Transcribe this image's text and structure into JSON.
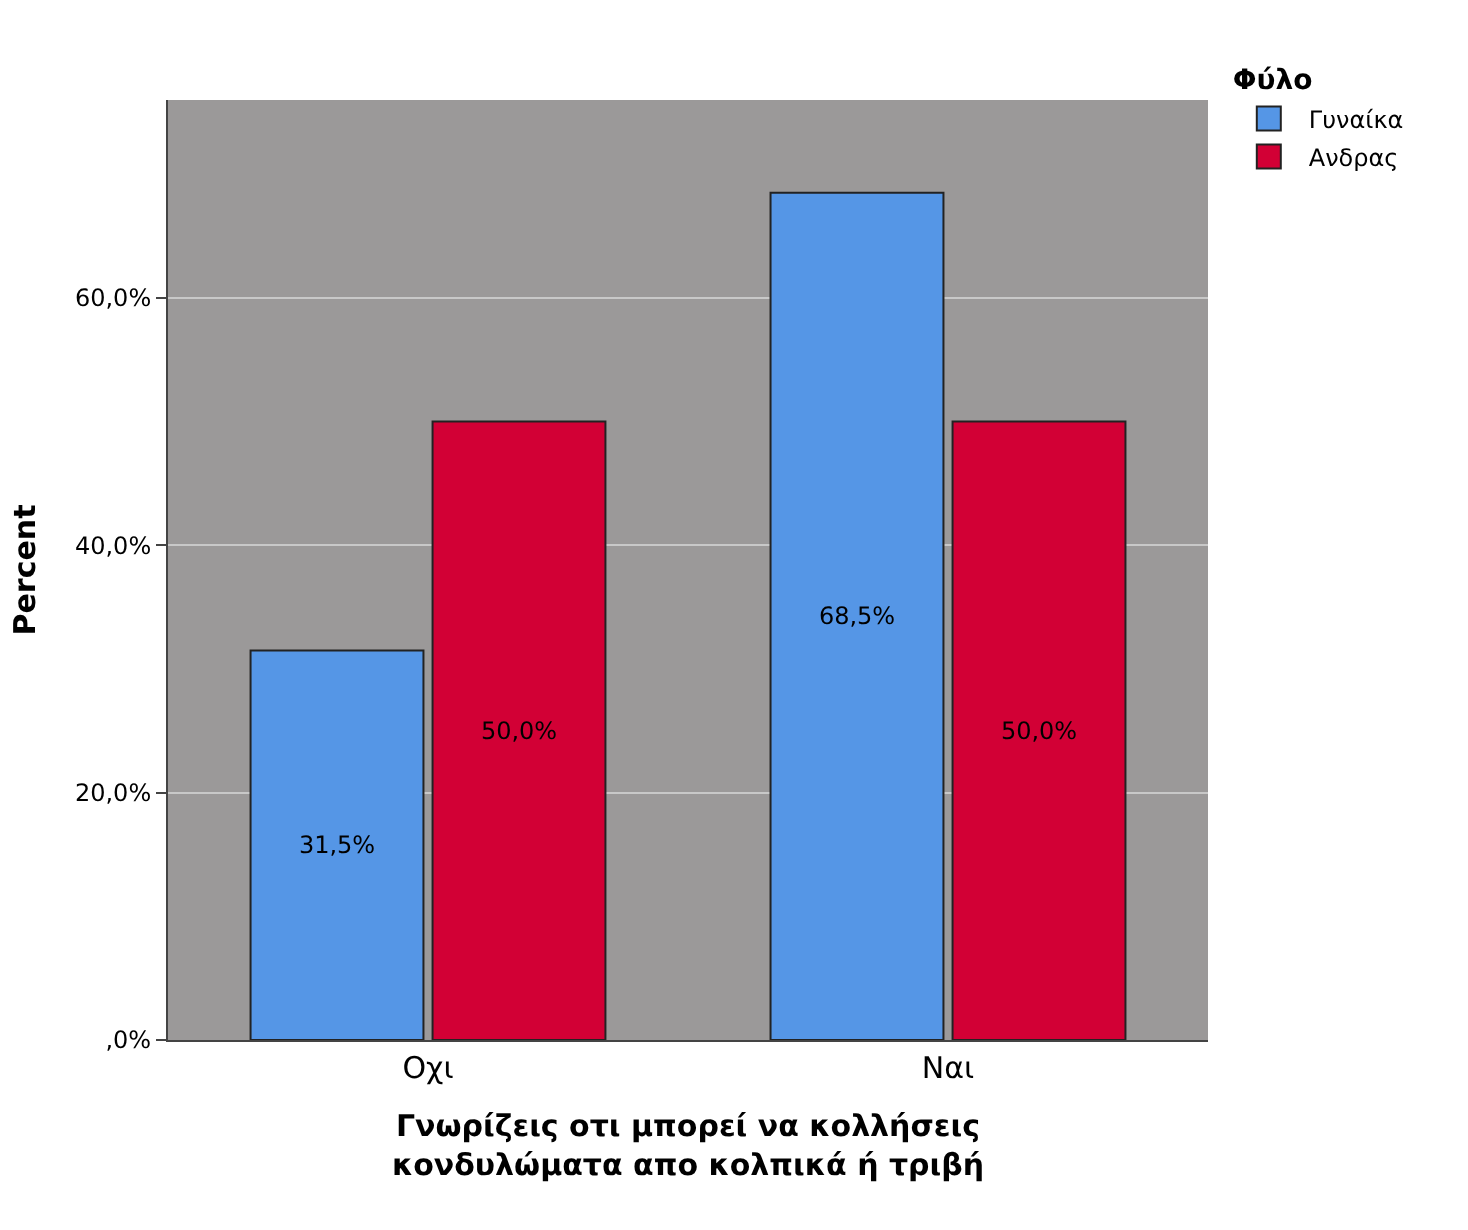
{
  "chart_data": {
    "type": "bar",
    "xlabel": "Γνωρίζεις οτι μπορεί να κολλήσεις κονδυλώματα απο κολπικά ή τριβή",
    "ylabel": "Percent",
    "legend_title": "Φύλο",
    "categories": [
      "Οχι",
      "Ναι"
    ],
    "series": [
      {
        "name": "Γυναίκα",
        "color": "#5596e6",
        "values": [
          31.5,
          68.5
        ],
        "value_labels": [
          "31,5%",
          "68,5%"
        ]
      },
      {
        "name": "Ανδρας",
        "color": "#d20035",
        "values": [
          50.0,
          50.0
        ],
        "value_labels": [
          "50,0%",
          "50,0%"
        ]
      }
    ],
    "ylim": [
      0,
      76
    ],
    "yticks": [
      {
        "value": 0,
        "label": ",0%"
      },
      {
        "value": 20,
        "label": "20,0%"
      },
      {
        "value": 40,
        "label": "40,0%"
      },
      {
        "value": 60,
        "label": "60,0%"
      }
    ],
    "grid": "y",
    "legend": "top right"
  }
}
